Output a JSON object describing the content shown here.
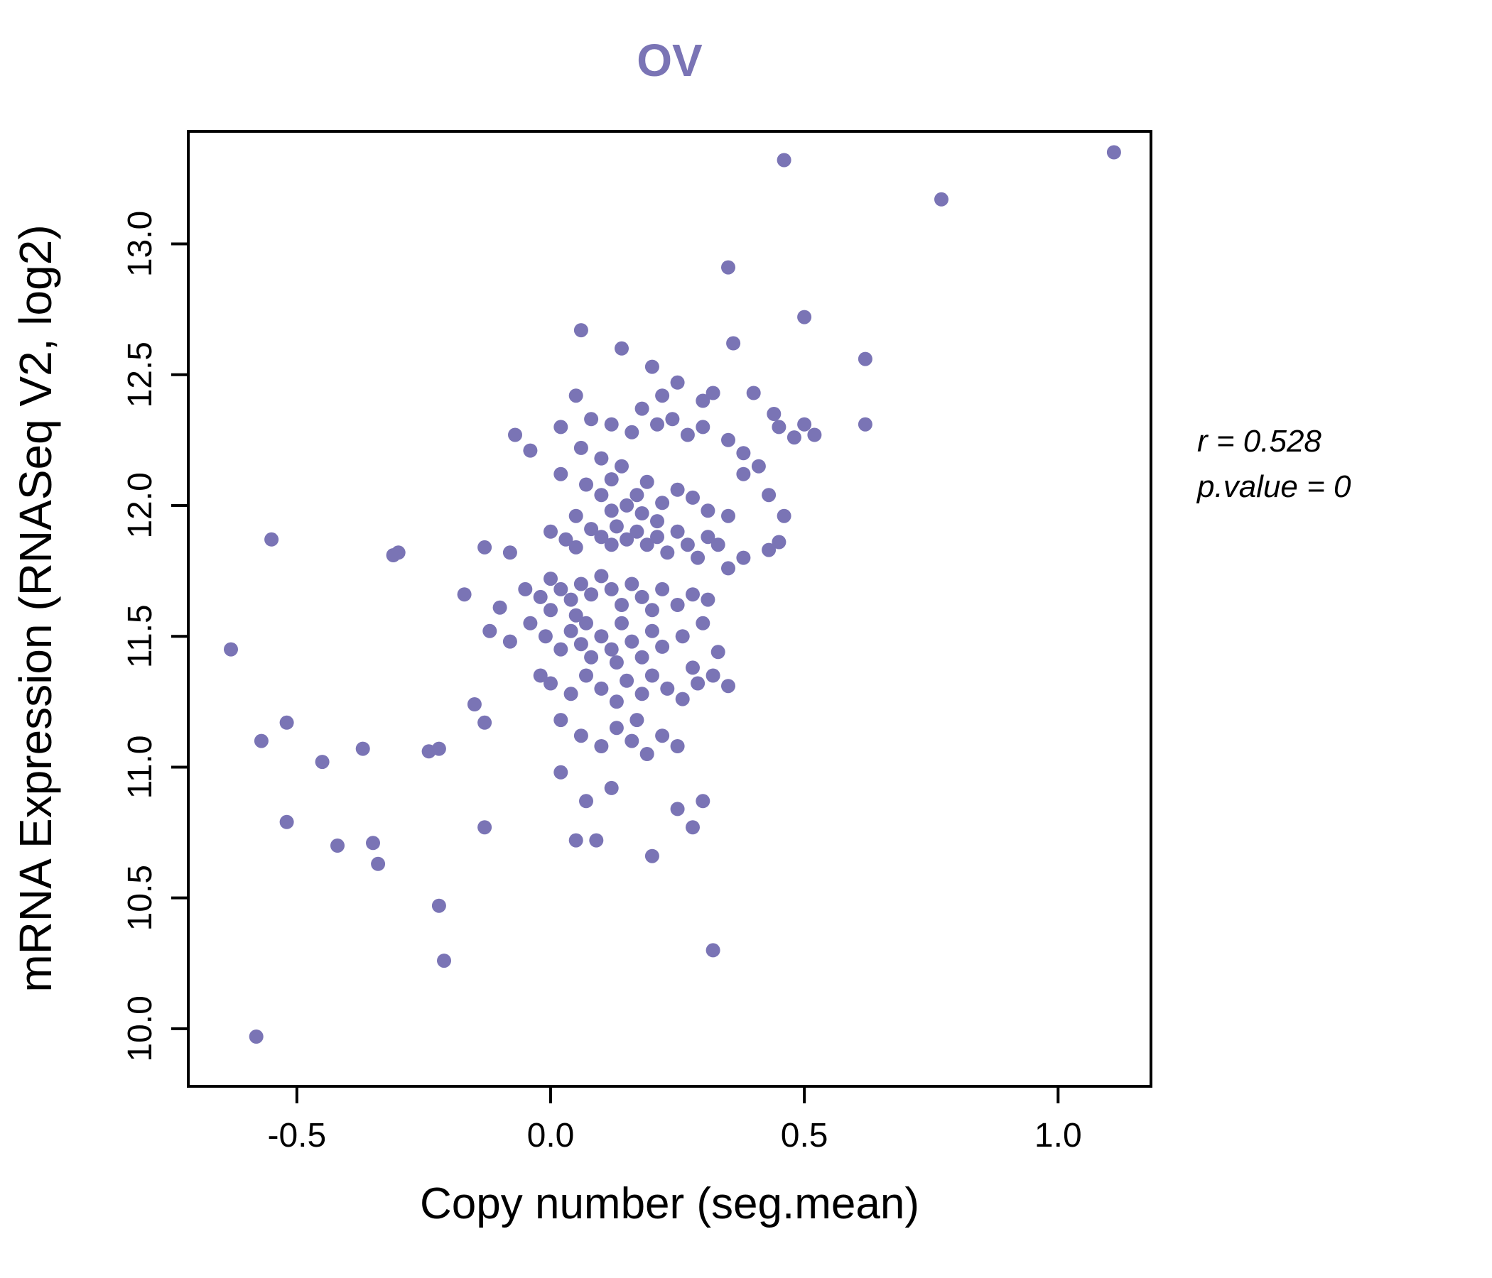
{
  "title": "OV",
  "accent_color": "#7a74b5",
  "axes": {
    "xlabel": "Copy number (seg.mean)",
    "ylabel": "mRNA Expression (RNASeq V2, log2)",
    "x_ticks": [
      -0.5,
      0.0,
      0.5,
      1.0
    ],
    "x_tick_labels": [
      "-0.5",
      "0.0",
      "0.5",
      "1.0"
    ],
    "y_ticks": [
      10.0,
      10.5,
      11.0,
      11.5,
      12.0,
      12.5,
      13.0
    ],
    "y_tick_labels": [
      "10.0",
      "10.5",
      "11.0",
      "11.5",
      "12.0",
      "12.5",
      "13.0"
    ]
  },
  "annotation": {
    "r_text": "r = 0.528",
    "p_text": "p.value = 0"
  },
  "chart_data": {
    "type": "scatter",
    "title": "OV",
    "xlabel": "Copy number (seg.mean)",
    "ylabel": "mRNA Expression (RNASeq V2, log2)",
    "xlim": [
      -0.714,
      1.183
    ],
    "ylim": [
      9.78,
      13.43
    ],
    "grid": false,
    "point_color": "#7a74b5",
    "stats": {
      "r": 0.528,
      "p_value": 0
    },
    "points": [
      [
        1.11,
        13.35
      ],
      [
        0.46,
        13.32
      ],
      [
        0.77,
        13.17
      ],
      [
        0.35,
        12.91
      ],
      [
        0.5,
        12.72
      ],
      [
        0.06,
        12.67
      ],
      [
        0.14,
        12.6
      ],
      [
        0.62,
        12.56
      ],
      [
        0.2,
        12.53
      ],
      [
        0.36,
        12.62
      ],
      [
        -0.63,
        11.45
      ],
      [
        -0.58,
        9.97
      ],
      [
        -0.55,
        11.87
      ],
      [
        -0.57,
        11.1
      ],
      [
        -0.52,
        10.79
      ],
      [
        -0.52,
        11.17
      ],
      [
        -0.45,
        11.02
      ],
      [
        -0.42,
        10.7
      ],
      [
        -0.37,
        11.07
      ],
      [
        -0.35,
        10.71
      ],
      [
        -0.34,
        10.63
      ],
      [
        -0.31,
        11.81
      ],
      [
        -0.3,
        11.82
      ],
      [
        -0.24,
        11.06
      ],
      [
        -0.22,
        11.07
      ],
      [
        -0.21,
        10.26
      ],
      [
        -0.22,
        10.47
      ],
      [
        -0.15,
        11.24
      ],
      [
        -0.13,
        11.17
      ],
      [
        -0.13,
        10.77
      ],
      [
        0.32,
        10.3
      ],
      [
        0.2,
        10.66
      ],
      [
        0.05,
        10.72
      ],
      [
        0.09,
        10.72
      ],
      [
        0.28,
        10.77
      ],
      [
        0.25,
        10.84
      ],
      [
        0.07,
        10.87
      ],
      [
        0.12,
        10.92
      ],
      [
        0.02,
        10.98
      ],
      [
        0.3,
        10.87
      ],
      [
        0.25,
        12.47
      ],
      [
        0.22,
        12.42
      ],
      [
        0.3,
        12.4
      ],
      [
        0.32,
        12.43
      ],
      [
        0.05,
        12.42
      ],
      [
        0.18,
        12.37
      ],
      [
        0.4,
        12.43
      ],
      [
        0.44,
        12.35
      ],
      [
        -0.07,
        12.27
      ],
      [
        0.02,
        12.3
      ],
      [
        0.08,
        12.33
      ],
      [
        0.12,
        12.31
      ],
      [
        0.16,
        12.28
      ],
      [
        0.21,
        12.31
      ],
      [
        0.24,
        12.33
      ],
      [
        0.27,
        12.27
      ],
      [
        0.3,
        12.3
      ],
      [
        0.35,
        12.25
      ],
      [
        0.45,
        12.3
      ],
      [
        0.48,
        12.26
      ],
      [
        0.5,
        12.31
      ],
      [
        0.52,
        12.27
      ],
      [
        0.62,
        12.31
      ],
      [
        -0.04,
        12.21
      ],
      [
        0.06,
        12.22
      ],
      [
        0.1,
        12.18
      ],
      [
        0.14,
        12.15
      ],
      [
        0.38,
        12.2
      ],
      [
        0.02,
        12.12
      ],
      [
        0.07,
        12.08
      ],
      [
        0.1,
        12.04
      ],
      [
        0.12,
        12.1
      ],
      [
        0.15,
        12.0
      ],
      [
        0.17,
        12.04
      ],
      [
        0.19,
        12.09
      ],
      [
        0.22,
        12.01
      ],
      [
        0.25,
        12.06
      ],
      [
        0.28,
        12.03
      ],
      [
        0.31,
        11.98
      ],
      [
        0.35,
        11.96
      ],
      [
        0.38,
        12.12
      ],
      [
        0.41,
        12.15
      ],
      [
        0.43,
        12.04
      ],
      [
        0.46,
        11.96
      ],
      [
        0.12,
        11.98
      ],
      [
        0.05,
        11.96
      ],
      [
        0.18,
        11.97
      ],
      [
        0.21,
        11.94
      ],
      [
        0.0,
        11.9
      ],
      [
        0.03,
        11.87
      ],
      [
        0.05,
        11.84
      ],
      [
        0.08,
        11.91
      ],
      [
        0.1,
        11.88
      ],
      [
        0.12,
        11.85
      ],
      [
        0.13,
        11.92
      ],
      [
        0.15,
        11.87
      ],
      [
        0.17,
        11.9
      ],
      [
        0.19,
        11.85
      ],
      [
        0.21,
        11.88
      ],
      [
        0.23,
        11.82
      ],
      [
        0.25,
        11.9
      ],
      [
        0.27,
        11.85
      ],
      [
        0.29,
        11.8
      ],
      [
        0.31,
        11.88
      ],
      [
        0.33,
        11.85
      ],
      [
        0.38,
        11.8
      ],
      [
        0.43,
        11.83
      ],
      [
        -0.13,
        11.84
      ],
      [
        -0.08,
        11.82
      ],
      [
        0.45,
        11.86
      ],
      [
        -0.05,
        11.68
      ],
      [
        -0.02,
        11.65
      ],
      [
        0.0,
        11.72
      ],
      [
        0.02,
        11.68
      ],
      [
        0.04,
        11.64
      ],
      [
        0.06,
        11.7
      ],
      [
        0.08,
        11.66
      ],
      [
        0.1,
        11.73
      ],
      [
        0.12,
        11.68
      ],
      [
        0.14,
        11.62
      ],
      [
        0.16,
        11.7
      ],
      [
        0.18,
        11.65
      ],
      [
        0.2,
        11.6
      ],
      [
        0.22,
        11.68
      ],
      [
        0.25,
        11.62
      ],
      [
        0.28,
        11.66
      ],
      [
        0.31,
        11.64
      ],
      [
        0.35,
        11.76
      ],
      [
        -0.17,
        11.66
      ],
      [
        -0.1,
        11.61
      ],
      [
        0.0,
        11.6
      ],
      [
        0.05,
        11.58
      ],
      [
        -0.12,
        11.52
      ],
      [
        -0.08,
        11.48
      ],
      [
        -0.04,
        11.55
      ],
      [
        -0.01,
        11.5
      ],
      [
        0.02,
        11.45
      ],
      [
        0.04,
        11.52
      ],
      [
        0.06,
        11.47
      ],
      [
        0.08,
        11.42
      ],
      [
        0.1,
        11.5
      ],
      [
        0.12,
        11.45
      ],
      [
        0.14,
        11.55
      ],
      [
        0.16,
        11.48
      ],
      [
        0.18,
        11.42
      ],
      [
        0.2,
        11.52
      ],
      [
        0.22,
        11.46
      ],
      [
        0.26,
        11.5
      ],
      [
        0.3,
        11.55
      ],
      [
        0.33,
        11.44
      ],
      [
        0.07,
        11.55
      ],
      [
        0.13,
        11.4
      ],
      [
        -0.02,
        11.35
      ],
      [
        0.0,
        11.32
      ],
      [
        0.04,
        11.28
      ],
      [
        0.07,
        11.35
      ],
      [
        0.1,
        11.3
      ],
      [
        0.13,
        11.25
      ],
      [
        0.15,
        11.33
      ],
      [
        0.18,
        11.28
      ],
      [
        0.2,
        11.35
      ],
      [
        0.23,
        11.3
      ],
      [
        0.26,
        11.26
      ],
      [
        0.29,
        11.32
      ],
      [
        0.32,
        11.35
      ],
      [
        0.35,
        11.31
      ],
      [
        0.28,
        11.38
      ],
      [
        0.02,
        11.18
      ],
      [
        0.06,
        11.12
      ],
      [
        0.1,
        11.08
      ],
      [
        0.13,
        11.15
      ],
      [
        0.16,
        11.1
      ],
      [
        0.19,
        11.05
      ],
      [
        0.22,
        11.12
      ],
      [
        0.17,
        11.18
      ],
      [
        0.25,
        11.08
      ]
    ]
  }
}
